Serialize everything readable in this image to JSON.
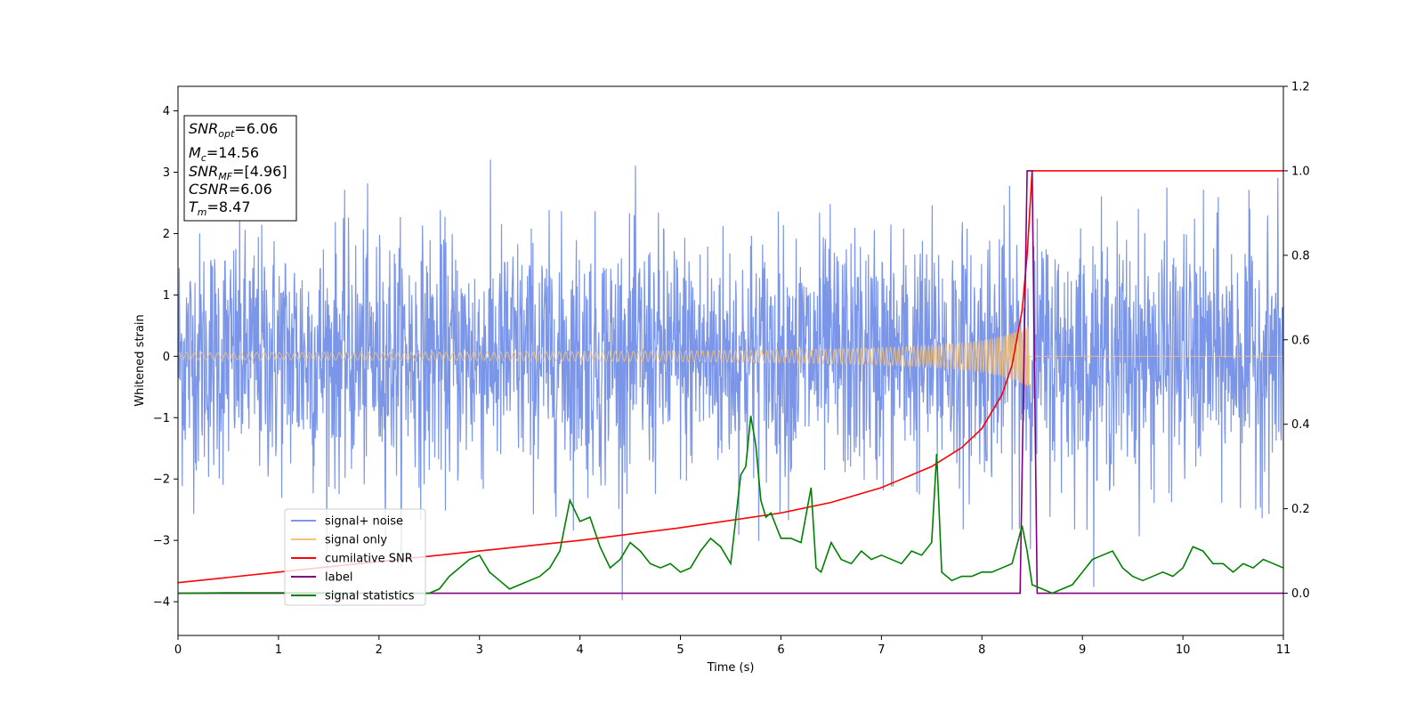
{
  "chart_data": {
    "type": "line",
    "xlabel": "Time (s)",
    "ylabel": "Whitened strain",
    "xlim": [
      0,
      11
    ],
    "ylim_left": [
      -4.55,
      4.4
    ],
    "ylim_right": [
      -0.1,
      1.2
    ],
    "x_ticks": [
      "0",
      "1",
      "2",
      "3",
      "4",
      "5",
      "6",
      "7",
      "8",
      "9",
      "10",
      "11"
    ],
    "y_ticks_left": [
      "−4",
      "−3",
      "−2",
      "−1",
      "0",
      "1",
      "2",
      "3",
      "4"
    ],
    "y_ticks_right": [
      "0.0",
      "0.2",
      "0.4",
      "0.6",
      "0.8",
      "1.0",
      "1.2"
    ],
    "grid": false,
    "legend_placement": "lower-left",
    "info_box": {
      "lines": [
        {
          "name": "SNR",
          "sub": "opt",
          "value": "=6.06"
        },
        {
          "name": "M",
          "sub": "c",
          "value": "=14.56"
        },
        {
          "name": "SNR",
          "sub": "MF",
          "value": "=[4.96]"
        },
        {
          "name": "CSNR",
          "sub": "",
          "value": "=6.06"
        },
        {
          "name": "T",
          "sub": "m",
          "value": "=8.47"
        }
      ]
    },
    "series": [
      {
        "name": "signal+ noise",
        "color": "#7b96e8",
        "axis": "left",
        "description_values": {
          "noise_sigma": 1.0,
          "t_merger": 8.47,
          "n_samples": 2600
        }
      },
      {
        "name": "signal only",
        "color": "#f5c27a",
        "axis": "left",
        "description_values": {
          "t_merger": 8.47,
          "peak_amplitude": 0.85,
          "start_amplitude": 0.02
        }
      },
      {
        "name": "cumilative SNR",
        "color": "#ff0000",
        "axis": "right",
        "x": [
          0,
          1,
          2,
          3,
          4,
          5,
          6,
          6.5,
          7,
          7.5,
          7.8,
          8.0,
          8.2,
          8.3,
          8.4,
          8.45,
          8.5,
          11
        ],
        "y": [
          0.025,
          0.05,
          0.075,
          0.1,
          0.125,
          0.155,
          0.19,
          0.215,
          0.25,
          0.3,
          0.345,
          0.39,
          0.47,
          0.54,
          0.67,
          0.8,
          1.0,
          1.0
        ]
      },
      {
        "name": "label",
        "color": "#800080",
        "axis": "right",
        "x": [
          0,
          8.38,
          8.45,
          8.5,
          8.55,
          11
        ],
        "y": [
          0,
          0,
          1.0,
          1.0,
          0,
          0
        ]
      },
      {
        "name": "signal statistics",
        "color": "#008000",
        "axis": "right",
        "x": [
          0,
          0.5,
          1,
          1.5,
          2,
          2.5,
          2.6,
          2.7,
          2.8,
          2.9,
          3.0,
          3.1,
          3.2,
          3.3,
          3.4,
          3.5,
          3.6,
          3.7,
          3.8,
          3.9,
          4.0,
          4.1,
          4.2,
          4.3,
          4.4,
          4.5,
          4.6,
          4.7,
          4.8,
          4.9,
          5.0,
          5.1,
          5.2,
          5.3,
          5.4,
          5.5,
          5.6,
          5.65,
          5.7,
          5.75,
          5.8,
          5.85,
          5.9,
          6.0,
          6.1,
          6.2,
          6.3,
          6.35,
          6.4,
          6.5,
          6.6,
          6.7,
          6.8,
          6.9,
          7.0,
          7.1,
          7.2,
          7.3,
          7.4,
          7.5,
          7.55,
          7.6,
          7.7,
          7.8,
          7.9,
          8.0,
          8.1,
          8.2,
          8.3,
          8.4,
          8.45,
          8.5,
          8.6,
          8.7,
          8.8,
          8.9,
          9.0,
          9.1,
          9.2,
          9.3,
          9.4,
          9.5,
          9.6,
          9.7,
          9.8,
          9.9,
          10.0,
          10.1,
          10.2,
          10.3,
          10.4,
          10.5,
          10.6,
          10.7,
          10.8,
          10.9,
          11.0
        ],
        "y": [
          0.0,
          0.001,
          0.001,
          0.001,
          0.0,
          0.0,
          0.01,
          0.04,
          0.06,
          0.08,
          0.09,
          0.05,
          0.03,
          0.01,
          0.02,
          0.03,
          0.04,
          0.06,
          0.1,
          0.22,
          0.17,
          0.18,
          0.11,
          0.06,
          0.08,
          0.12,
          0.1,
          0.07,
          0.06,
          0.07,
          0.05,
          0.06,
          0.1,
          0.13,
          0.11,
          0.07,
          0.28,
          0.3,
          0.42,
          0.35,
          0.22,
          0.18,
          0.19,
          0.13,
          0.13,
          0.12,
          0.25,
          0.06,
          0.05,
          0.12,
          0.08,
          0.07,
          0.1,
          0.08,
          0.09,
          0.08,
          0.07,
          0.1,
          0.09,
          0.12,
          0.33,
          0.05,
          0.03,
          0.04,
          0.04,
          0.05,
          0.05,
          0.06,
          0.07,
          0.16,
          0.1,
          0.02,
          0.01,
          0.0,
          0.01,
          0.02,
          0.05,
          0.08,
          0.09,
          0.1,
          0.06,
          0.04,
          0.03,
          0.04,
          0.05,
          0.04,
          0.06,
          0.11,
          0.1,
          0.07,
          0.07,
          0.05,
          0.07,
          0.06,
          0.08,
          0.07,
          0.06
        ]
      }
    ]
  }
}
